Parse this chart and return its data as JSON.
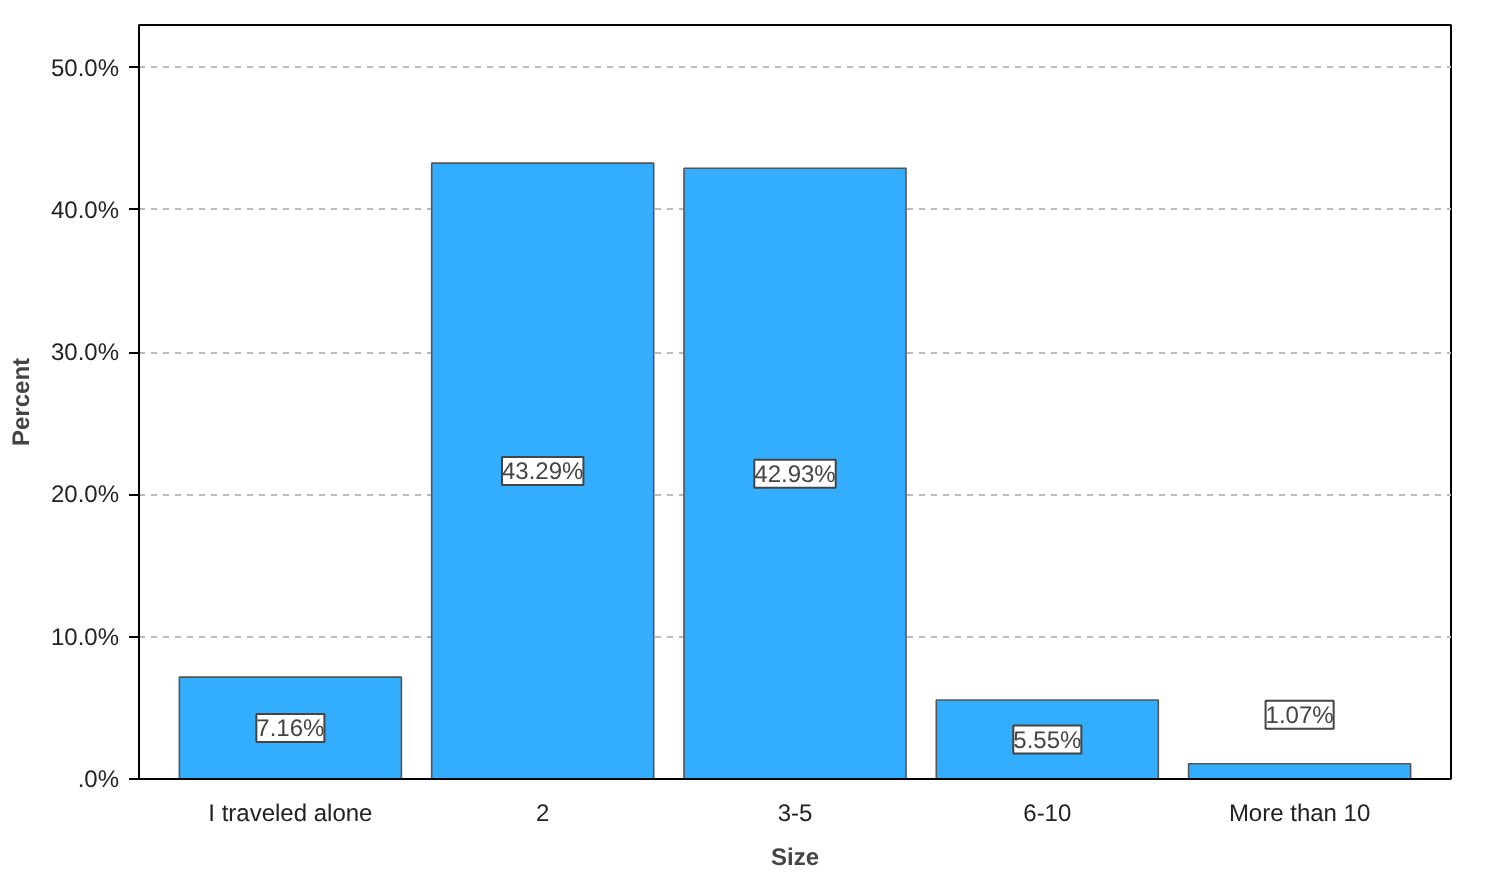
{
  "chart_data": {
    "type": "bar",
    "xlabel": "Size",
    "ylabel": "Percent",
    "categories": [
      "I traveled alone",
      "2",
      "3-5",
      "6-10",
      "More than 10"
    ],
    "values": [
      7.16,
      43.29,
      42.93,
      5.55,
      1.07
    ],
    "value_labels": [
      "7.16%",
      "43.29%",
      "42.93%",
      "5.55%",
      "1.07%"
    ],
    "color": "#33adfd",
    "ylim": [
      0,
      53
    ],
    "yticks": [
      {
        "value": 0,
        "label": ".0%"
      },
      {
        "value": 10,
        "label": "10.0%"
      },
      {
        "value": 20,
        "label": "20.0%"
      },
      {
        "value": 30,
        "label": "30.0%"
      },
      {
        "value": 40,
        "label": "40.0%"
      },
      {
        "value": 50,
        "label": "50.0%"
      }
    ],
    "grid": "y"
  }
}
